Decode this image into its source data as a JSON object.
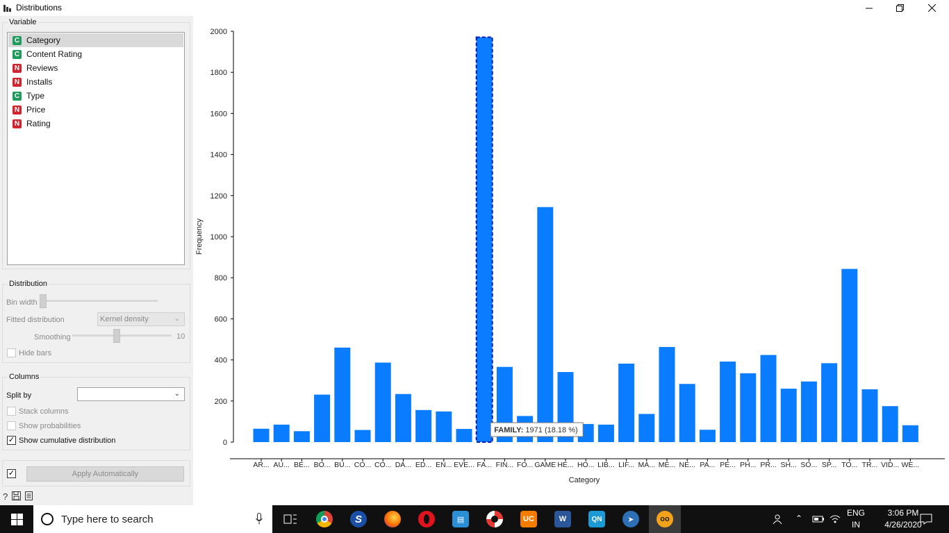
{
  "window": {
    "title": "Distributions",
    "app_icon": "bar-chart-icon"
  },
  "variable_box": {
    "title": "Variable",
    "items": [
      {
        "type": "C",
        "label": "Category"
      },
      {
        "type": "C",
        "label": "Content Rating"
      },
      {
        "type": "N",
        "label": "Reviews"
      },
      {
        "type": "N",
        "label": "Installs"
      },
      {
        "type": "C",
        "label": "Type"
      },
      {
        "type": "N",
        "label": "Price"
      },
      {
        "type": "N",
        "label": "Rating"
      }
    ],
    "selected": "Category"
  },
  "distribution_box": {
    "title": "Distribution",
    "bin_width_label": "Bin width",
    "fitted_label": "Fitted distribution",
    "fitted_value": "Kernel density",
    "smoothing_label": "Smoothing",
    "smoothing_value": "10",
    "hide_bars_label": "Hide bars"
  },
  "columns_box": {
    "title": "Columns",
    "split_by_label": "Split by",
    "split_by_value": "",
    "stack_label": "Stack columns",
    "probabilities_label": "Show probabilities",
    "cumulative_label": "Show cumulative distribution",
    "cumulative_checked": true
  },
  "apply": {
    "label": "Apply Automatically",
    "checked": true
  },
  "footer_icons": [
    "help-icon",
    "save-icon",
    "report-icon"
  ],
  "chart_data": {
    "type": "bar",
    "xlabel": "Category",
    "ylabel": "Frequency",
    "ylim": [
      0,
      2000
    ],
    "yticks": [
      0,
      200,
      400,
      600,
      800,
      1000,
      1200,
      1400,
      1600,
      1800,
      2000
    ],
    "categories": [
      "AR...",
      "AU...",
      "BE...",
      "BO...",
      "BU...",
      "CO...",
      "CO...",
      "DA...",
      "ED...",
      "EN...",
      "EVE...",
      "FA...",
      "FIN...",
      "FO...",
      "GAME",
      "HE...",
      "HO...",
      "LIB...",
      "LIF...",
      "MA...",
      "ME...",
      "NE...",
      "PA...",
      "PE...",
      "PH...",
      "PR...",
      "SH...",
      "SO...",
      "SP...",
      "TO...",
      "TR...",
      "VID...",
      "WE..."
    ],
    "values": [
      65,
      85,
      53,
      231,
      460,
      59,
      387,
      234,
      156,
      149,
      64,
      1971,
      366,
      127,
      1144,
      341,
      88,
      85,
      382,
      137,
      463,
      283,
      60,
      392,
      335,
      424,
      260,
      295,
      384,
      843,
      257,
      175,
      82
    ],
    "bar_color": "#0a7cff",
    "highlighted_index": 11,
    "tooltip": {
      "name": "FAMILY:",
      "text": "1971 (18.18 %)"
    }
  },
  "taskbar": {
    "search_placeholder": "Type here to search",
    "language": "ENG",
    "region": "IN",
    "time": "3:06 PM",
    "date": "4/26/2020"
  }
}
